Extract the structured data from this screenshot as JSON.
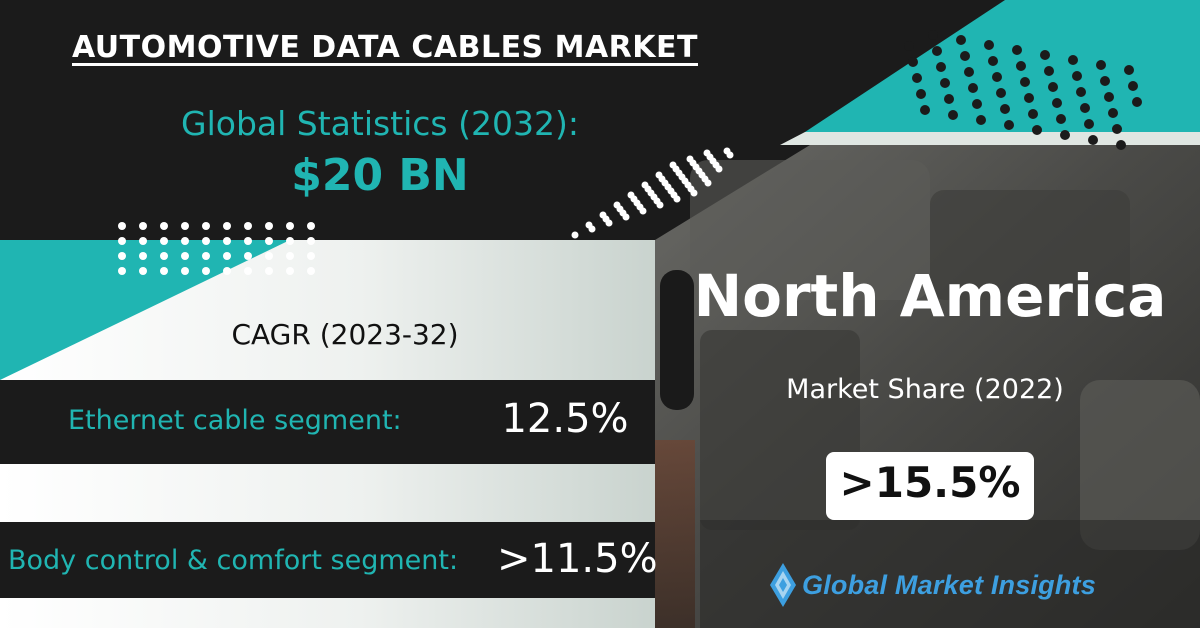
{
  "header": {
    "title": "AUTOMOTIVE DATA CABLES MARKET"
  },
  "global_stats": {
    "label": "Global Statistics (2032):",
    "value": "$20 BN"
  },
  "cagr": {
    "label": "CAGR (2023-32)",
    "segments": [
      {
        "label": "Ethernet cable segment:",
        "value": "12.5%"
      },
      {
        "label": "Body control & comfort segment:",
        "value": ">11.5%"
      }
    ]
  },
  "region": {
    "name": "North America",
    "share_label": "Market Share (2022)",
    "share_value": ">15.5%"
  },
  "brand": {
    "name": "Global Market Insights",
    "logo_icon": "diamond-logo-icon"
  },
  "colors": {
    "teal": "#20b5b2",
    "dark": "#1b1b1b",
    "logo_blue": "#3d9fe0"
  }
}
